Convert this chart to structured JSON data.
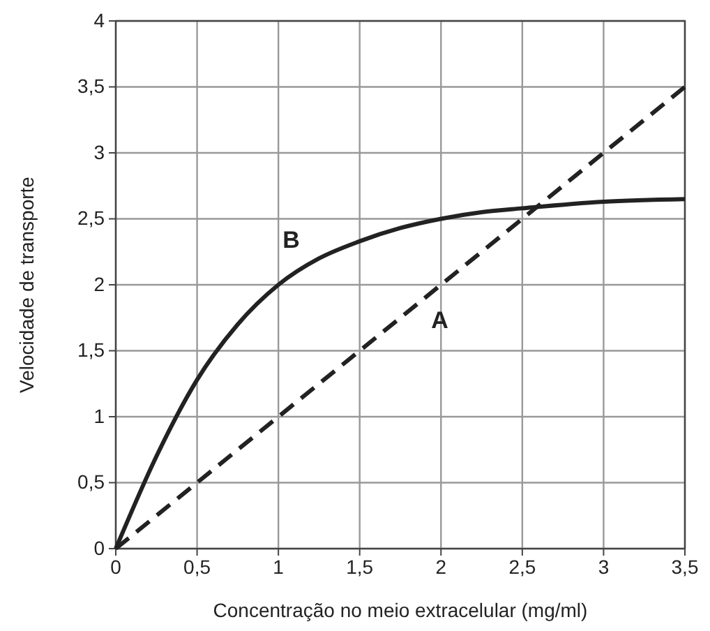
{
  "chart_data": {
    "type": "line",
    "xlabel": "Concentração no meio extracelular (mg/ml)",
    "ylabel": "Velocidade de transporte",
    "xlim": [
      0,
      3.5
    ],
    "ylim": [
      0,
      4
    ],
    "xticks": [
      0,
      {
        "value": 0.5,
        "label": "0,5"
      },
      1,
      {
        "value": 1.5,
        "label": "1,5"
      },
      2,
      {
        "value": 2.5,
        "label": "2,5"
      },
      3,
      {
        "value": 3.5,
        "label": "3,5"
      }
    ],
    "yticks": [
      0,
      {
        "value": 0.5,
        "label": "0,5"
      },
      1,
      {
        "value": 1.5,
        "label": "1,5"
      },
      2,
      {
        "value": 2.5,
        "label": "2,5"
      },
      3,
      {
        "value": 3.5,
        "label": "3,5"
      },
      4
    ],
    "grid": true,
    "marker": "none",
    "series": [
      {
        "name": "A",
        "color": "#222222",
        "line_style": "dashed",
        "x": [
          0,
          3.5
        ],
        "values": [
          0,
          3.5
        ]
      },
      {
        "name": "B",
        "color": "#222222",
        "line_style": "solid",
        "x": [
          0,
          0.25,
          0.5,
          0.75,
          1,
          1.25,
          1.5,
          1.75,
          2,
          2.25,
          2.5,
          3,
          3.5
        ],
        "values": [
          0,
          0.7,
          1.28,
          1.7,
          2,
          2.2,
          2.33,
          2.43,
          2.5,
          2.55,
          2.58,
          2.63,
          2.65
        ]
      }
    ]
  }
}
